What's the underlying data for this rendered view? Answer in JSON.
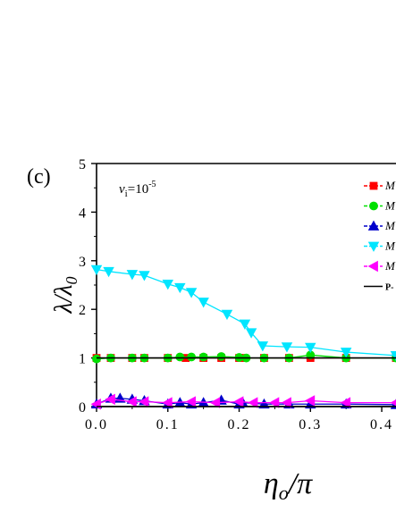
{
  "panel_label": "(c)",
  "annotation": {
    "prefix": "v",
    "prefix_sub": "i",
    "text": "=10",
    "superscript": "-5"
  },
  "colors": {
    "series1": "#ff0000",
    "series2": "#00e000",
    "series3": "#0000cc",
    "series4": "#00e5ff",
    "series5": "#ff00ff",
    "reference": "#000000"
  },
  "chart_data": {
    "type": "line",
    "ylabel_main": "λ/λ",
    "ylabel_sub": "0",
    "xlabel": "η",
    "xlabel_sub": "o",
    "xlabel_suffix": "/π",
    "xlim": [
      0.0,
      0.42
    ],
    "ylim": [
      0,
      5
    ],
    "xticks": [
      0.0,
      0.1,
      0.2,
      0.3,
      0.4
    ],
    "xtick_labels": [
      "0.0",
      "0.1",
      "0.2",
      "0.3",
      "0.4"
    ],
    "yticks": [
      0,
      1,
      2,
      3,
      4,
      5
    ],
    "ytick_labels": [
      "0",
      "1",
      "2",
      "3",
      "4",
      "5"
    ],
    "legend_position": "top-right (clipped)",
    "series": [
      {
        "name": "M",
        "marker": "square",
        "color": "#ff0000",
        "x": [
          0.0,
          0.02,
          0.05,
          0.067,
          0.1,
          0.125,
          0.15,
          0.175,
          0.2,
          0.205,
          0.235,
          0.27,
          0.3,
          0.35,
          0.42
        ],
        "y": [
          1.0,
          1.0,
          1.0,
          1.0,
          1.0,
          1.0,
          1.0,
          1.0,
          1.0,
          1.0,
          1.0,
          1.0,
          1.0,
          1.0,
          1.0
        ]
      },
      {
        "name": "M",
        "marker": "circle",
        "color": "#00e000",
        "x": [
          0.0,
          0.02,
          0.05,
          0.067,
          0.1,
          0.117,
          0.133,
          0.15,
          0.175,
          0.2,
          0.21,
          0.235,
          0.27,
          0.3,
          0.35,
          0.42
        ],
        "y": [
          0.98,
          1.0,
          1.0,
          1.0,
          1.0,
          1.02,
          1.02,
          1.02,
          1.03,
          1.01,
          1.0,
          1.0,
          1.0,
          1.06,
          1.0,
          1.0
        ]
      },
      {
        "name": "M",
        "marker": "triangle-up",
        "color": "#0000cc",
        "x": [
          0.0,
          0.02,
          0.033,
          0.05,
          0.067,
          0.1,
          0.117,
          0.133,
          0.15,
          0.175,
          0.2,
          0.205,
          0.235,
          0.27,
          0.3,
          0.35,
          0.42
        ],
        "y": [
          0.05,
          0.17,
          0.17,
          0.15,
          0.12,
          0.05,
          0.08,
          0.05,
          0.08,
          0.13,
          0.05,
          0.08,
          0.05,
          0.05,
          0.05,
          0.05,
          0.04
        ]
      },
      {
        "name": "M",
        "marker": "triangle-down",
        "color": "#00e5ff",
        "x": [
          0.0,
          0.017,
          0.05,
          0.067,
          0.1,
          0.117,
          0.133,
          0.15,
          0.183,
          0.208,
          0.217,
          0.233,
          0.267,
          0.3,
          0.35,
          0.42
        ],
        "y": [
          2.82,
          2.78,
          2.72,
          2.7,
          2.52,
          2.45,
          2.35,
          2.15,
          1.9,
          1.7,
          1.52,
          1.25,
          1.23,
          1.22,
          1.12,
          1.05
        ]
      },
      {
        "name": "M",
        "marker": "triangle-left",
        "color": "#ff00ff",
        "x": [
          0.0,
          0.02,
          0.05,
          0.067,
          0.1,
          0.133,
          0.167,
          0.2,
          0.22,
          0.25,
          0.267,
          0.3,
          0.35,
          0.42
        ],
        "y": [
          0.05,
          0.15,
          0.1,
          0.1,
          0.08,
          0.1,
          0.08,
          0.1,
          0.08,
          0.08,
          0.08,
          0.12,
          0.08,
          0.08
        ]
      },
      {
        "name": "P-",
        "marker": "none",
        "color": "#000000",
        "x": [
          0.0,
          0.42
        ],
        "y": [
          0.0,
          0.0
        ]
      },
      {
        "name": "",
        "marker": "none",
        "color": "#000000",
        "x": [
          0.0,
          0.42
        ],
        "y": [
          1.0,
          1.0
        ]
      }
    ]
  }
}
